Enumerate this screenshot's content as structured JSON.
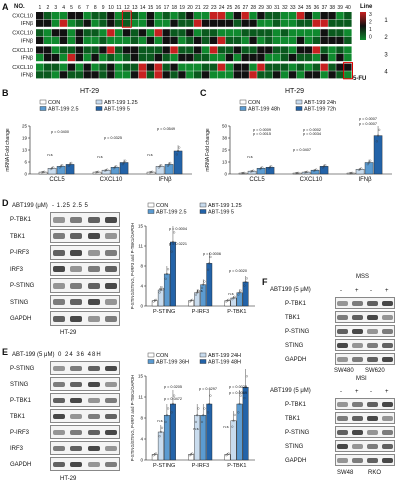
{
  "panels": {
    "A": {
      "letter": "A",
      "no_label": "NO.",
      "numbers": [
        "1",
        "2",
        "3",
        "4",
        "5",
        "6",
        "7",
        "8",
        "9",
        "10",
        "11",
        "12",
        "13",
        "14",
        "15",
        "16",
        "17",
        "18",
        "19",
        "20",
        "21",
        "22",
        "23",
        "24",
        "25",
        "26",
        "27",
        "28",
        "29",
        "30",
        "31",
        "32",
        "33",
        "34",
        "35",
        "36",
        "37",
        "38",
        "39",
        "40"
      ],
      "line_label": "Line",
      "row_labels": [
        "CXCL10",
        "IFNβ",
        "CXCL10",
        "IFNβ",
        "CXCL10",
        "IFNβ",
        "CXCL10",
        "IFNβ"
      ],
      "line_numbers": [
        "1",
        "2",
        "3",
        "4"
      ],
      "scale": [
        "3",
        "2",
        "1",
        "0"
      ],
      "fu_label": "5-FU"
    },
    "B": {
      "letter": "B",
      "cell": "HT-29",
      "legend": [
        "CON",
        "ABT-199 1.25",
        "ABT-199 2.5",
        "ABT-199 5"
      ],
      "ylabel": "mRNA Fold change",
      "groups": [
        "CCL5",
        "CXCL10",
        "IFNβ"
      ],
      "pvals": [
        "p = 0.0400",
        "p = 0.0325",
        "p = 0.0549"
      ],
      "ns": "n.s"
    },
    "C": {
      "letter": "C",
      "cell": "HT-29",
      "legend": [
        "CON",
        "ABT-199 24h",
        "ABT-199 48h",
        "ABT-199 72h"
      ],
      "ylabel": "mRNA Fold change",
      "groups": [
        "CCL5",
        "CXCL10",
        "IFNβ"
      ],
      "pvals": [
        "p = 0.0009",
        "p = 0.0015",
        "p = 0.0002",
        "p = 0.0034",
        "p = 0.0407",
        "p = 0.0007",
        "p = 0.0007"
      ],
      "ns": "n.s"
    },
    "D": {
      "letter": "D",
      "treat": "ABT199 (μM)",
      "doses": "- 1.25 2.5 5",
      "blot_labels": [
        "P-TBK1",
        "TBK1",
        "P-IRF3",
        "IRF3",
        "P-STING",
        "STING",
        "GAPDH"
      ],
      "cell": "HT-29",
      "legend": [
        "CON",
        "ABT-199 1.25",
        "ABT-199 2.5",
        "ABT-199 5"
      ],
      "ylabel": "P-STING/STING, P-IRF3 and P-TBK1/GAPDH",
      "groups": [
        "P-STING",
        "P-IRF3",
        "P-TBK1"
      ],
      "pvals": [
        "p = 0.0004",
        "p = 0.0221",
        "p = 0.0006",
        "p = 0.0020"
      ],
      "ns": "n.s"
    },
    "E": {
      "letter": "E",
      "treat": "ABT-199 (5 μM)",
      "times": "0 24 36 48H",
      "blot_labels": [
        "P-STING",
        "STING",
        "P-TBK1",
        "TBK1",
        "P-IRF3",
        "IRF3",
        "GAPDH"
      ],
      "cell": "HT-29",
      "legend": [
        "CON",
        "ABT-199 24H",
        "ABT-199 36H",
        "ABT-199 48H"
      ],
      "ylabel": "P-STING/STING, P-IRF3 and P-TBK1/GAPDH",
      "groups": [
        "P-STING",
        "P-IRF3",
        "P-TBK1"
      ],
      "pvals": [
        "p = 0.0205",
        "p = 0.0472",
        "p = 0.6297",
        "p = 0.0023",
        "p = 0.0069"
      ],
      "ns": "n.s"
    },
    "F": {
      "letter": "F",
      "mss": "MSS",
      "msi": "MSI",
      "treat": "ABT199 (5 μM)",
      "signs": [
        "-",
        "+",
        "-",
        "+"
      ],
      "blot_labels_top": [
        "P-TBK1",
        "TBK1",
        "P-STING",
        "STING",
        "GAPDH"
      ],
      "blot_labels_bottom": [
        "P-TBK1",
        "TBK1",
        "P-STING",
        "STING",
        "GAPDH"
      ],
      "cells_top": [
        "SW480",
        "SW620"
      ],
      "cells_bottom": [
        "SW48",
        "RKO"
      ]
    }
  },
  "colors": {
    "con": "#ffffff",
    "s1": "#c9dcee",
    "s2": "#5b9bd1",
    "s3": "#2363a8",
    "heat_low": "#0f8a2e",
    "heat_high": "#c62020",
    "heat_mid": "#111111"
  },
  "chart_data": [
    {
      "type": "bar",
      "title": "HT-29",
      "ylabel": "mRNA Fold change",
      "categories": [
        "CCL5",
        "CXCL10",
        "IFNβ"
      ],
      "ylim": [
        0,
        25
      ],
      "series": [
        {
          "name": "CON",
          "values": [
            1,
            1,
            1
          ]
        },
        {
          "name": "ABT-199 1.25",
          "values": [
            3,
            2,
            4
          ]
        },
        {
          "name": "ABT-199 2.5",
          "values": [
            4,
            3.5,
            5
          ]
        },
        {
          "name": "ABT-199 5",
          "values": [
            5,
            6,
            12
          ]
        }
      ]
    },
    {
      "type": "bar",
      "title": "HT-29",
      "ylabel": "mRNA Fold change",
      "categories": [
        "CCL5",
        "CXCL10",
        "IFNβ"
      ],
      "ylim": [
        0,
        50
      ],
      "series": [
        {
          "name": "CON",
          "values": [
            1,
            1,
            1
          ]
        },
        {
          "name": "ABT-199 24h",
          "values": [
            3,
            2,
            5
          ]
        },
        {
          "name": "ABT-199 48h",
          "values": [
            6,
            4,
            12
          ]
        },
        {
          "name": "ABT-199 72h",
          "values": [
            7,
            8,
            40
          ]
        }
      ]
    },
    {
      "type": "bar",
      "title": "",
      "ylabel": "P-STING/STING, P-IRF3 and P-TBK1/GAPDH",
      "categories": [
        "P-STING",
        "P-IRF3",
        "P-TBK1"
      ],
      "ylim": [
        0,
        15
      ],
      "series": [
        {
          "name": "CON",
          "values": [
            1,
            1,
            1
          ]
        },
        {
          "name": "ABT-199 1.25",
          "values": [
            3,
            2.5,
            1.5
          ]
        },
        {
          "name": "ABT-199 2.5",
          "values": [
            6,
            4,
            2.5
          ]
        },
        {
          "name": "ABT-199 5",
          "values": [
            12,
            8,
            4.5
          ]
        }
      ]
    },
    {
      "type": "bar",
      "title": "",
      "ylabel": "P-STING/STING, P-IRF3 and P-TBK1/GAPDH",
      "categories": [
        "P-STING",
        "P-IRF3",
        "P-TBK1"
      ],
      "ylim": [
        0,
        15
      ],
      "series": [
        {
          "name": "CON",
          "values": [
            1,
            1,
            1
          ]
        },
        {
          "name": "ABT-199 24H",
          "values": [
            5,
            8,
            7
          ]
        },
        {
          "name": "ABT-199 36H",
          "values": [
            8,
            8,
            10
          ]
        },
        {
          "name": "ABT-199 48H",
          "values": [
            10,
            10,
            13
          ]
        }
      ]
    }
  ]
}
